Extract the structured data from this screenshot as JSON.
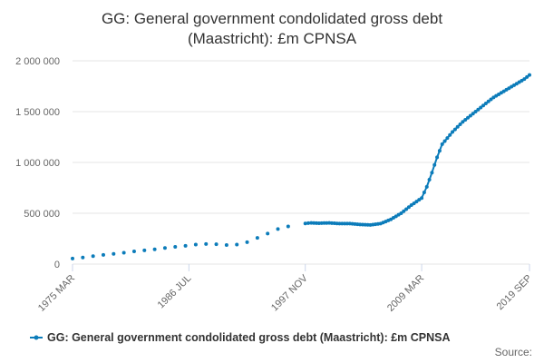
{
  "chart_data": {
    "type": "line",
    "title": "GG: General government condolidated gross debt (Maastricht): £m CPNSA",
    "title_lines": [
      "GG: General government condolidated gross debt",
      "(Maastricht): £m CPNSA"
    ],
    "xlabel": "",
    "ylabel": "",
    "x_ticks": [
      "1975 MAR",
      "1986 JUL",
      "1997 NOV",
      "2009 MAR",
      "2019 SEP"
    ],
    "y_ticks": [
      "0",
      "500 000",
      "1 000 000",
      "1 500 000",
      "2 000 000"
    ],
    "ylim": [
      0,
      2000000
    ],
    "xlim": [
      "1975-03",
      "2019-09"
    ],
    "grid": true,
    "legend_position": "bottom",
    "source_label": "Source:",
    "series": [
      {
        "name": "GG: General government condolidated gross debt (Maastricht): £m CPNSA",
        "color": "#0c7cba",
        "annual_points": [
          [
            "1975-03",
            55000
          ],
          [
            "1976-03",
            65000
          ],
          [
            "1977-03",
            78000
          ],
          [
            "1978-03",
            90000
          ],
          [
            "1979-03",
            100000
          ],
          [
            "1980-03",
            112000
          ],
          [
            "1981-03",
            125000
          ],
          [
            "1982-03",
            135000
          ],
          [
            "1983-03",
            145000
          ],
          [
            "1984-03",
            158000
          ],
          [
            "1985-03",
            170000
          ],
          [
            "1986-03",
            180000
          ],
          [
            "1987-03",
            192000
          ],
          [
            "1988-03",
            198000
          ],
          [
            "1989-03",
            195000
          ],
          [
            "1990-03",
            188000
          ],
          [
            "1991-03",
            192000
          ],
          [
            "1992-03",
            215000
          ],
          [
            "1993-03",
            258000
          ],
          [
            "1994-03",
            300000
          ],
          [
            "1995-03",
            345000
          ],
          [
            "1996-03",
            370000
          ]
        ],
        "quarterly_points": [
          [
            "1997-11",
            400000
          ],
          [
            "1998-06",
            405000
          ],
          [
            "1999-03",
            402000
          ],
          [
            "2000-03",
            405000
          ],
          [
            "2001-03",
            398000
          ],
          [
            "2002-03",
            398000
          ],
          [
            "2003-03",
            390000
          ],
          [
            "2004-03",
            385000
          ],
          [
            "2005-03",
            398000
          ],
          [
            "2006-03",
            440000
          ],
          [
            "2007-03",
            500000
          ],
          [
            "2008-03",
            580000
          ],
          [
            "2009-03",
            650000
          ],
          [
            "2009-09",
            760000
          ],
          [
            "2010-03",
            900000
          ],
          [
            "2010-09",
            1050000
          ],
          [
            "2011-03",
            1180000
          ],
          [
            "2012-03",
            1300000
          ],
          [
            "2013-03",
            1400000
          ],
          [
            "2014-03",
            1480000
          ],
          [
            "2015-03",
            1560000
          ],
          [
            "2016-03",
            1640000
          ],
          [
            "2017-03",
            1700000
          ],
          [
            "2018-03",
            1760000
          ],
          [
            "2019-03",
            1820000
          ],
          [
            "2019-09",
            1860000
          ]
        ]
      }
    ]
  }
}
